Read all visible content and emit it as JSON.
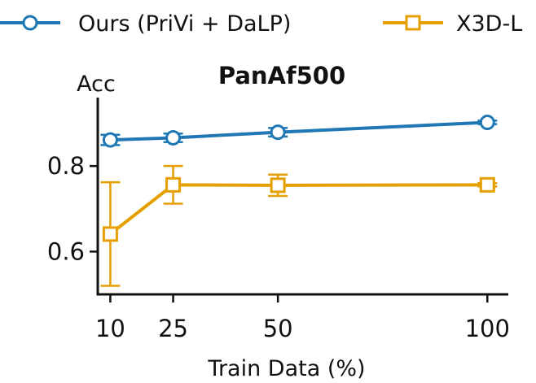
{
  "chart_data": {
    "type": "line",
    "title": "PanAf500",
    "xlabel": "Train Data (%)",
    "ylabel": "Acc",
    "x": [
      10,
      25,
      50,
      100
    ],
    "xticks": [
      10,
      25,
      50,
      100
    ],
    "yticks": [
      0.6,
      0.8
    ],
    "xlim": [
      7,
      105
    ],
    "ylim": [
      0.5,
      0.96
    ],
    "grid": false,
    "legend_position": "top",
    "series": [
      {
        "name": "Ours (PriVi + DaLP)",
        "marker": "circle",
        "color": "#1f77b4",
        "values": [
          0.861,
          0.866,
          0.879,
          0.902
        ],
        "errors": [
          0.012,
          0.01,
          0.01,
          0.004
        ]
      },
      {
        "name": "X3D-L",
        "marker": "square",
        "color": "#e69f00",
        "values": [
          0.641,
          0.756,
          0.755,
          0.756
        ],
        "errors": [
          0.121,
          0.044,
          0.025,
          0.004
        ]
      }
    ]
  }
}
